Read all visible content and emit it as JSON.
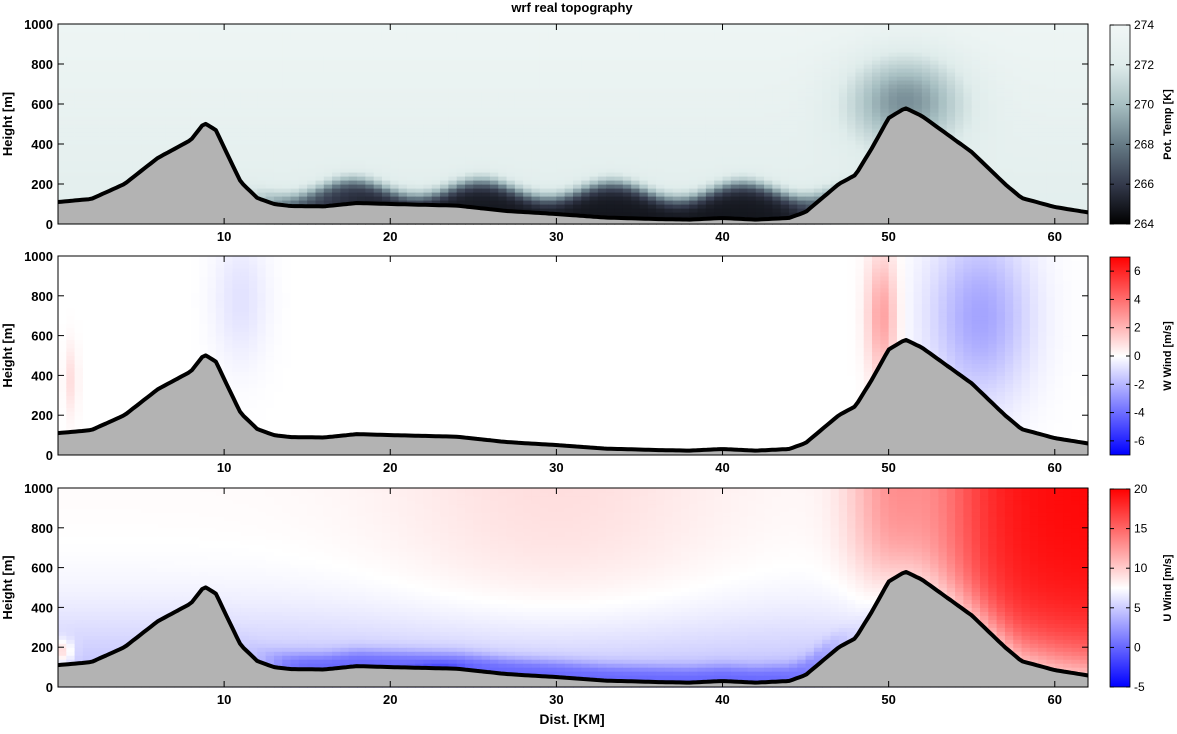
{
  "title": "wrf real topography",
  "xlabel": "Dist. [KM]",
  "chart_data": [
    {
      "type": "heatmap",
      "ylabel": "Height [m]",
      "colorbar_label": "Pot. Temp [K]",
      "colorbar_ticks": [
        "264",
        "266",
        "268",
        "270",
        "272",
        "274"
      ],
      "colorbar_range": [
        264,
        274
      ],
      "colormap": [
        "#000000",
        "#343a4c",
        "#667b86",
        "#a7bfc2",
        "#dfeceb",
        "#f1f7f6"
      ],
      "xlim": [
        0,
        62
      ],
      "ylim": [
        0,
        1000
      ],
      "xticks": [
        "10",
        "20",
        "30",
        "40",
        "50",
        "60"
      ],
      "yticks": [
        "0",
        "200",
        "400",
        "600",
        "800",
        "1000"
      ],
      "features": [
        {
          "name": "cold pool",
          "x_range": [
            13,
            46
          ],
          "top": 180,
          "min_value": 264.5
        }
      ]
    },
    {
      "type": "heatmap",
      "ylabel": "Height [m]",
      "colorbar_label": "W Wind [m/s]",
      "colorbar_ticks": [
        "6",
        "4",
        "2",
        "0",
        "-2",
        "-4",
        "-6"
      ],
      "colorbar_range": [
        -7,
        7
      ],
      "colormap": [
        "#0000ff",
        "#ffffff",
        "#ff0000"
      ],
      "xlim": [
        0,
        62
      ],
      "ylim": [
        0,
        1000
      ],
      "xticks": [
        "10",
        "20",
        "30",
        "40",
        "50",
        "60"
      ],
      "yticks": [
        "0",
        "200",
        "400",
        "600",
        "800",
        "1000"
      ],
      "features": [
        {
          "name": "updraft windward",
          "x": 49.5,
          "value": 2.5
        },
        {
          "name": "downdraft lee",
          "x": 56,
          "value": -2.5
        },
        {
          "name": "downdraft upstream",
          "x": 11,
          "value": -0.8
        }
      ]
    },
    {
      "type": "heatmap",
      "ylabel": "Height [m]",
      "colorbar_label": "U Wind [m/s]",
      "colorbar_ticks": [
        "20",
        "15",
        "10",
        "5",
        "0",
        "-5"
      ],
      "colorbar_range": [
        -5,
        20
      ],
      "colormap": [
        "#0000ff",
        "#ffffff",
        "#ff0000"
      ],
      "xlim": [
        0,
        62
      ],
      "ylim": [
        0,
        1000
      ],
      "xticks": [
        "10",
        "20",
        "30",
        "40",
        "50",
        "60"
      ],
      "yticks": [
        "0",
        "200",
        "400",
        "600",
        "800",
        "1000"
      ],
      "features": [
        {
          "name": "lee jet",
          "x_range": [
            54,
            62
          ],
          "value": 20
        },
        {
          "name": "valley calm",
          "x_range": [
            12,
            46
          ],
          "top": 80,
          "value": 0
        }
      ]
    }
  ],
  "terrain": {
    "x": [
      0,
      2,
      4,
      5,
      6,
      7,
      8,
      8.8,
      9.5,
      10.3,
      11,
      12,
      13,
      14,
      16,
      18,
      20,
      24,
      27,
      30,
      33,
      36,
      38,
      40,
      42,
      44,
      45,
      46,
      47,
      48,
      49,
      50,
      51,
      52,
      53,
      54,
      55,
      56,
      57,
      58,
      60,
      62
    ],
    "y": [
      110,
      125,
      200,
      265,
      330,
      375,
      420,
      505,
      470,
      330,
      210,
      130,
      100,
      90,
      88,
      105,
      100,
      92,
      65,
      50,
      32,
      25,
      22,
      30,
      22,
      30,
      60,
      130,
      200,
      245,
      380,
      530,
      580,
      540,
      480,
      420,
      360,
      280,
      200,
      130,
      85,
      58
    ]
  }
}
